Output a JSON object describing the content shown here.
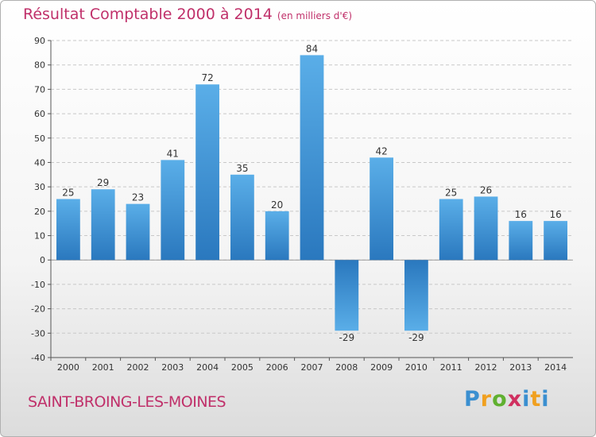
{
  "chart_data": {
    "type": "bar",
    "title": "Résultat Comptable 2000 à 2014",
    "subtitle": "(en milliers d'€)",
    "categories": [
      "2000",
      "2001",
      "2002",
      "2003",
      "2004",
      "2005",
      "2006",
      "2007",
      "2008",
      "2009",
      "2010",
      "2011",
      "2012",
      "2013",
      "2014"
    ],
    "values": [
      25,
      29,
      23,
      41,
      72,
      35,
      20,
      84,
      -29,
      42,
      -29,
      25,
      26,
      16,
      16
    ],
    "ylim": [
      -40,
      90
    ],
    "yticks": [
      90,
      80,
      70,
      60,
      50,
      40,
      30,
      20,
      10,
      0,
      -10,
      -20,
      -30,
      -40
    ],
    "grid": true,
    "bar_color": "#3d8fd6"
  },
  "footer": {
    "place_name": "SAINT-BROING-LES-MOINES",
    "logo_letters": [
      "P",
      "r",
      "o",
      "x",
      "i",
      "t",
      "i"
    ]
  }
}
